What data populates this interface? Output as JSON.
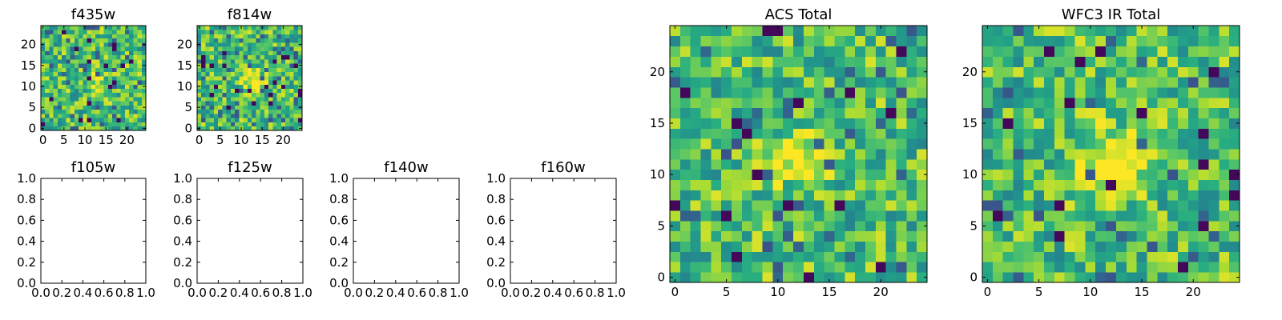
{
  "chart_data": [
    {
      "type": "heatmap",
      "title": "f435w",
      "xticks": [
        "0",
        "5",
        "10",
        "15",
        "20"
      ],
      "yticks": [
        "0",
        "5",
        "10",
        "15",
        "20"
      ],
      "xlim": [
        -0.5,
        24.5
      ],
      "ylim": [
        -0.5,
        24.5
      ],
      "grid_size": [
        25,
        25
      ],
      "colormap": "viridis",
      "seed": 11,
      "center_bright": 0.15,
      "dark_fraction": 0.03
    },
    {
      "type": "heatmap",
      "title": "f814w",
      "xticks": [
        "0",
        "5",
        "10",
        "15",
        "20"
      ],
      "yticks": [
        "0",
        "5",
        "10",
        "15",
        "20"
      ],
      "xlim": [
        -0.5,
        24.5
      ],
      "ylim": [
        -0.5,
        24.5
      ],
      "grid_size": [
        25,
        25
      ],
      "colormap": "viridis",
      "seed": 23,
      "center_bright": 0.35,
      "dark_fraction": 0.04
    },
    {
      "type": "scatter",
      "title": "f105w",
      "xticks": [
        "0.0",
        "0.2",
        "0.4",
        "0.6",
        "0.8",
        "1.0"
      ],
      "yticks": [
        "0.0",
        "0.2",
        "0.4",
        "0.6",
        "0.8",
        "1.0"
      ],
      "xlim": [
        0,
        1
      ],
      "ylim": [
        0,
        1
      ],
      "x": [],
      "y": []
    },
    {
      "type": "scatter",
      "title": "f125w",
      "xticks": [
        "0.0",
        "0.2",
        "0.4",
        "0.6",
        "0.8",
        "1.0"
      ],
      "yticks": [
        "0.0",
        "0.2",
        "0.4",
        "0.6",
        "0.8",
        "1.0"
      ],
      "xlim": [
        0,
        1
      ],
      "ylim": [
        0,
        1
      ],
      "x": [],
      "y": []
    },
    {
      "type": "scatter",
      "title": "f140w",
      "xticks": [
        "0.0",
        "0.2",
        "0.4",
        "0.6",
        "0.8",
        "1.0"
      ],
      "yticks": [
        "0.0",
        "0.2",
        "0.4",
        "0.6",
        "0.8",
        "1.0"
      ],
      "xlim": [
        0,
        1
      ],
      "ylim": [
        0,
        1
      ],
      "x": [],
      "y": []
    },
    {
      "type": "scatter",
      "title": "f160w",
      "xticks": [
        "0.0",
        "0.2",
        "0.4",
        "0.6",
        "0.8",
        "1.0"
      ],
      "yticks": [
        "0.0",
        "0.2",
        "0.4",
        "0.6",
        "0.8",
        "1.0"
      ],
      "xlim": [
        0,
        1
      ],
      "ylim": [
        0,
        1
      ],
      "x": [],
      "y": []
    },
    {
      "type": "heatmap",
      "title": "ACS Total",
      "xticks": [
        "0",
        "5",
        "10",
        "15",
        "20"
      ],
      "yticks": [
        "0",
        "5",
        "10",
        "15",
        "20"
      ],
      "xlim": [
        -0.5,
        24.5
      ],
      "ylim": [
        -0.5,
        24.5
      ],
      "grid_size": [
        25,
        25
      ],
      "colormap": "viridis",
      "seed": 37,
      "center_bright": 0.3,
      "dark_fraction": 0.025
    },
    {
      "type": "heatmap",
      "title": "WFC3 IR Total",
      "xticks": [
        "0",
        "5",
        "10",
        "15",
        "20"
      ],
      "yticks": [
        "0",
        "5",
        "10",
        "15",
        "20"
      ],
      "xlim": [
        -0.5,
        24.5
      ],
      "ylim": [
        -0.5,
        24.5
      ],
      "grid_size": [
        25,
        25
      ],
      "colormap": "viridis",
      "seed": 53,
      "center_bright": 0.45,
      "dark_fraction": 0.03
    }
  ]
}
